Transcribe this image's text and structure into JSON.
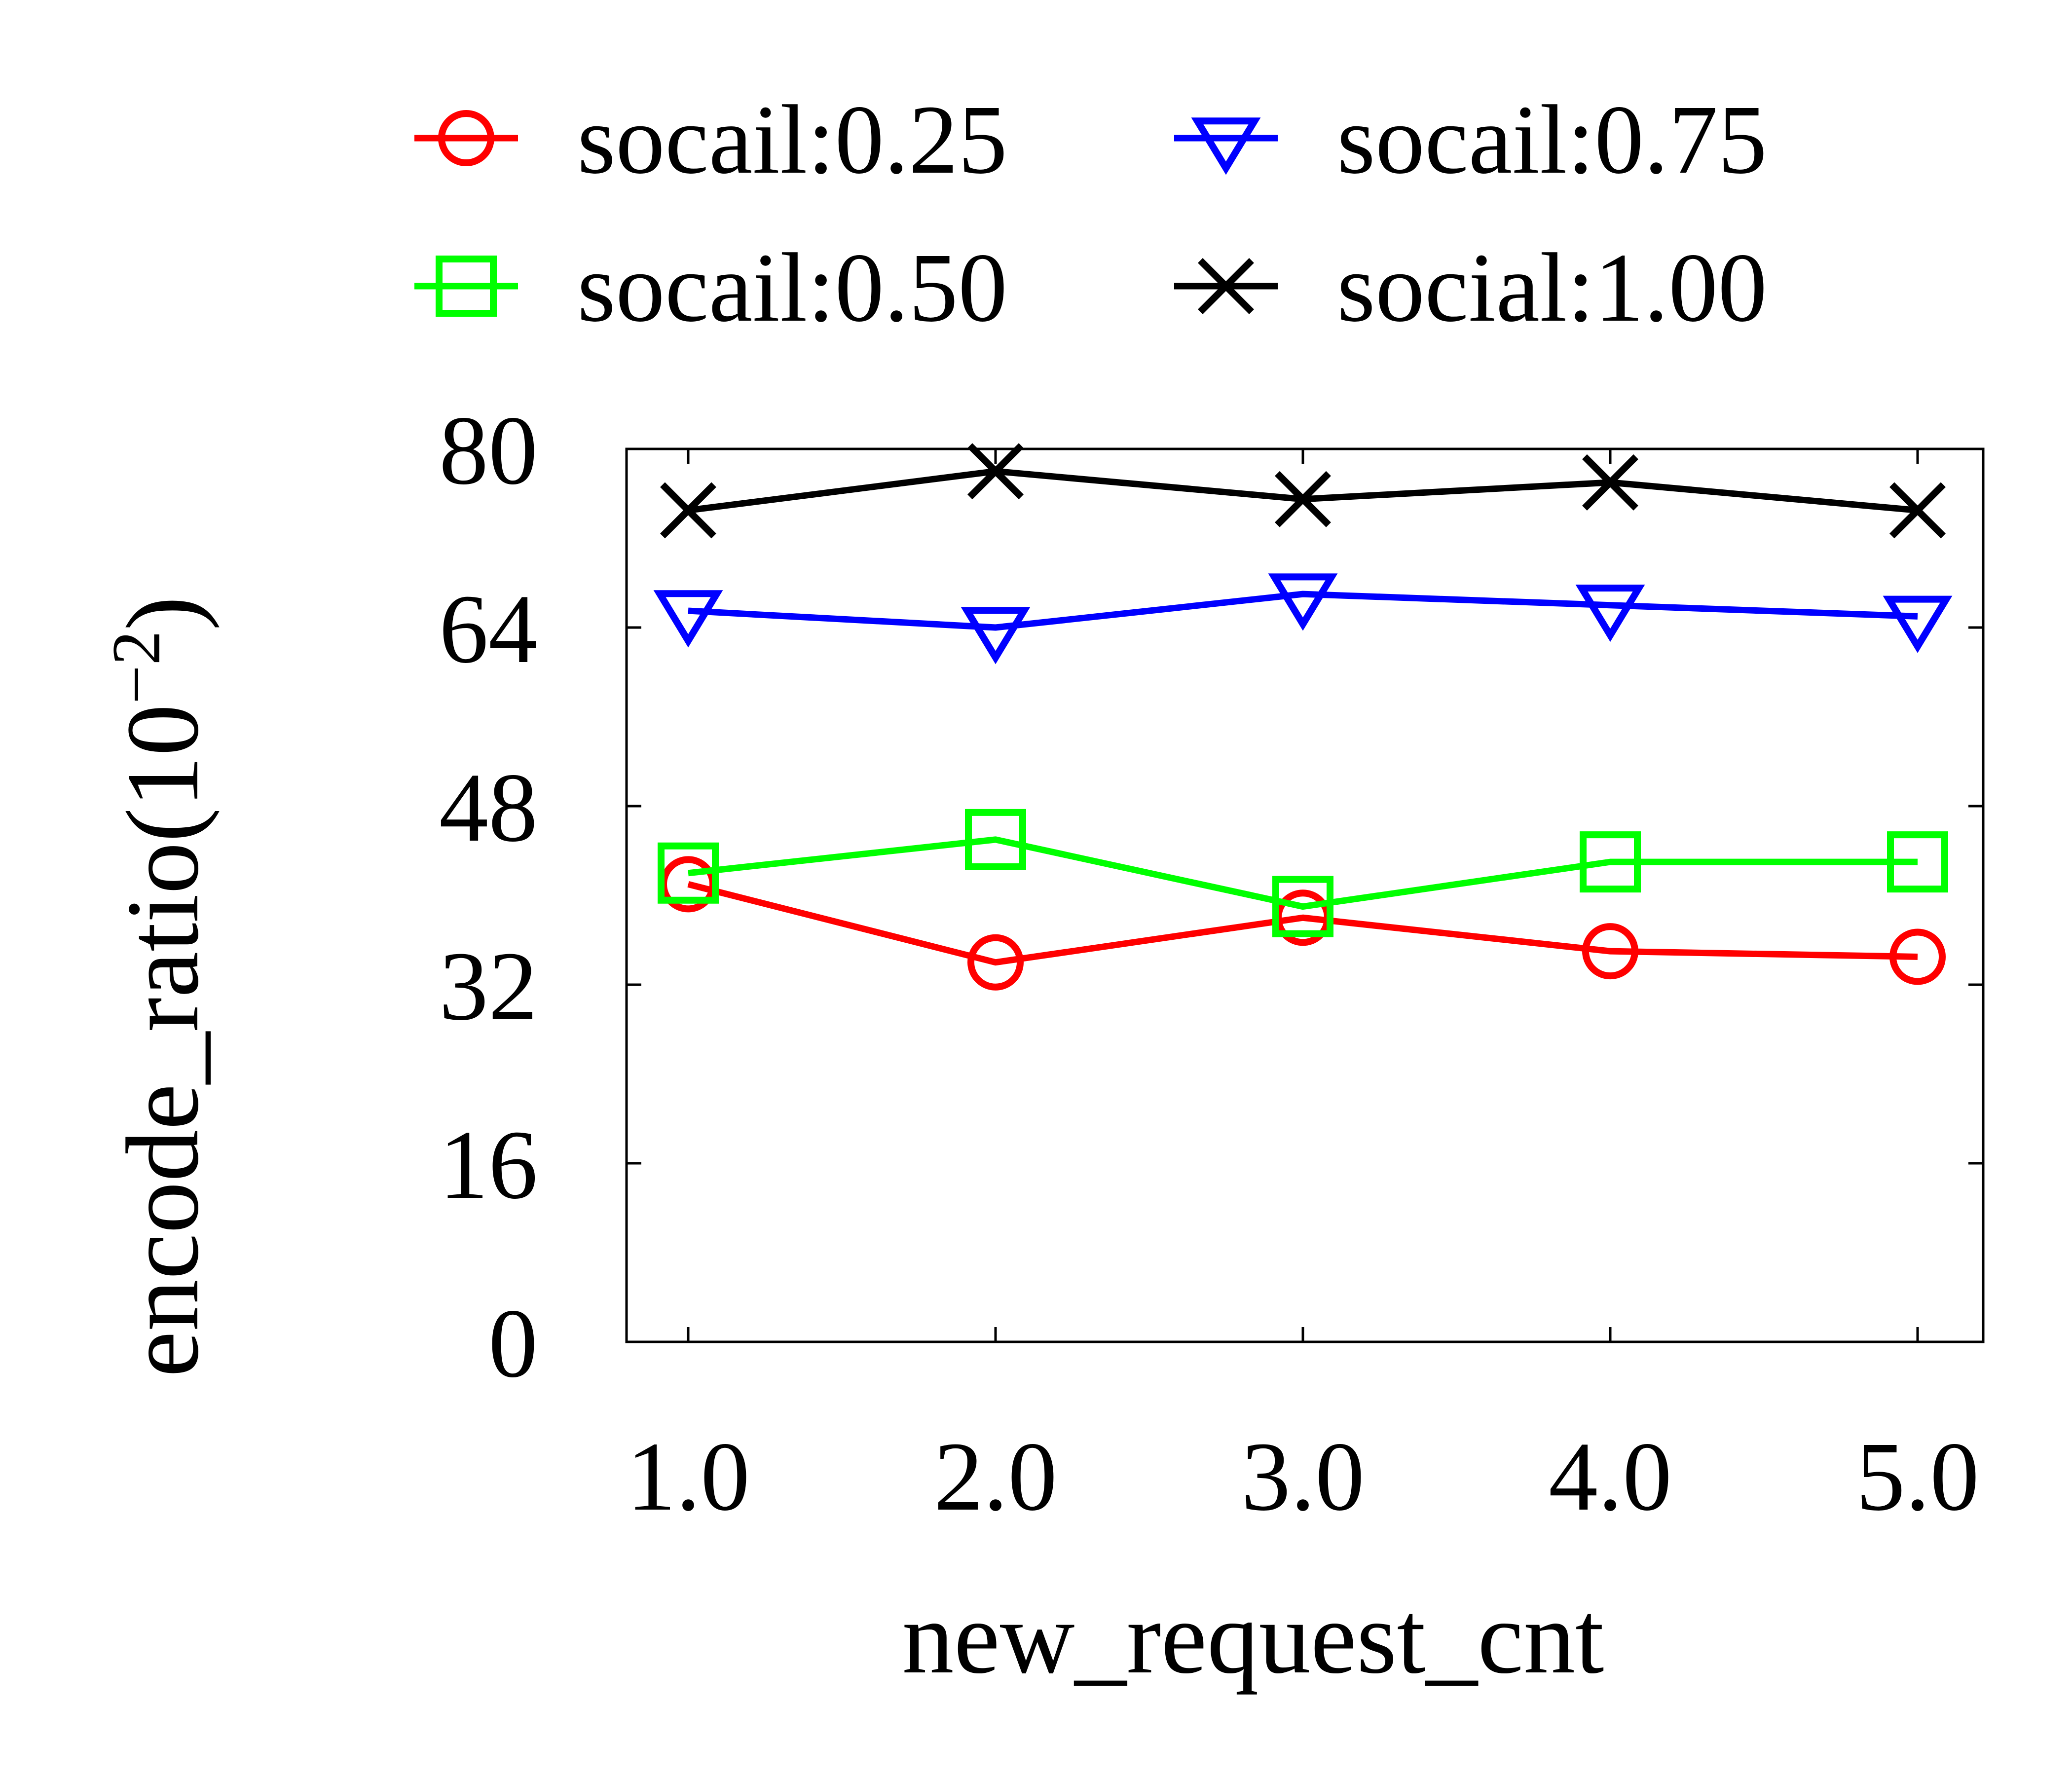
{
  "chart_data": {
    "type": "line",
    "xlabel": "new_request_cnt",
    "ylabel": "encode_ratio(10",
    "ylabel_sup": "−2",
    "ylabel_close": ")",
    "x": [
      1.0,
      2.0,
      3.0,
      4.0,
      5.0
    ],
    "x_tick_labels": [
      "1.0",
      "2.0",
      "3.0",
      "4.0",
      "5.0"
    ],
    "ylim": [
      0,
      80
    ],
    "y_ticks": [
      0,
      16,
      32,
      48,
      64,
      80
    ],
    "y_tick_labels": [
      "0",
      "16",
      "32",
      "48",
      "64",
      "80"
    ],
    "grid": false,
    "legend_position": "top",
    "series": [
      {
        "name": "socail:0.25",
        "color": "#ff0000",
        "marker": "circle",
        "values": [
          41.0,
          34.0,
          38.0,
          35.0,
          34.5
        ]
      },
      {
        "name": "socail:0.75",
        "color": "#0000ff",
        "marker": "triangle-down",
        "values": [
          65.5,
          64.0,
          67.0,
          66.0,
          65.0
        ]
      },
      {
        "name": "socail:0.50",
        "color": "#00ff00",
        "marker": "square",
        "values": [
          42.0,
          45.0,
          39.0,
          43.0,
          43.0
        ]
      },
      {
        "name": "social:1.00",
        "color": "#000000",
        "marker": "x",
        "values": [
          74.5,
          78.0,
          75.5,
          77.0,
          74.5
        ]
      }
    ]
  }
}
